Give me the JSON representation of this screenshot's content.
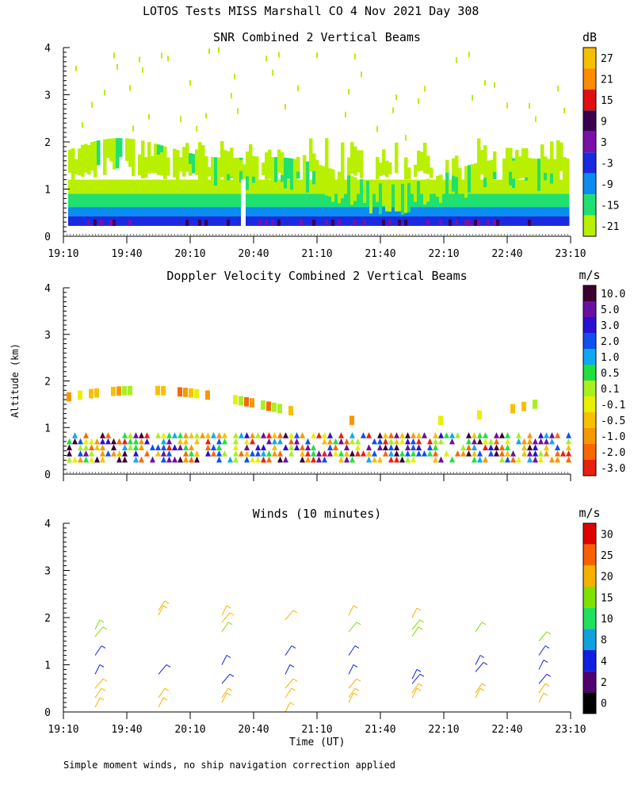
{
  "figure": {
    "title": "LOTOS Tests MISS Marshall CO   4 Nov 2021 Day 308",
    "y_axis_label": "Altitude (km)",
    "x_axis_label": "Time (UT)",
    "footnote": "Simple moment winds, no ship navigation correction applied"
  },
  "chart_data": [
    {
      "type": "heatmap",
      "title": "SNR Combined 2 Vertical Beams",
      "ylim": [
        0,
        4
      ],
      "y_ticks": [
        "0",
        "1",
        "2",
        "3",
        "4"
      ],
      "x_ticks": [
        "19:10",
        "19:40",
        "20:10",
        "20:40",
        "21:10",
        "21:40",
        "22:10",
        "22:40",
        "23:10"
      ],
      "colorbar": {
        "unit": "dB",
        "labels": [
          "27",
          "21",
          "15",
          "9",
          "3",
          "-3",
          "-9",
          "-15",
          "-21"
        ],
        "colors": [
          "#f6c000",
          "#ff8c00",
          "#e01010",
          "#3a0050",
          "#7a10a8",
          "#1a2ae0",
          "#0a8cf0",
          "#20e070",
          "#b8f000"
        ]
      },
      "layers": [
        {
          "level": "-21 to -15 dB",
          "altitude_km": [
            0.3,
            2.0
          ],
          "note": "scattered echoes to ~4 km"
        },
        {
          "level": "-9 to 3 dB",
          "altitude_km": [
            0.2,
            0.9
          ]
        },
        {
          "level": "3 to 9 dB",
          "altitude_km": [
            0.2,
            0.45
          ]
        }
      ]
    },
    {
      "type": "heatmap",
      "title": "Doppler Velocity Combined 2 Vertical Beams",
      "ylim": [
        0,
        4
      ],
      "y_ticks": [
        "0",
        "1",
        "2",
        "3",
        "4"
      ],
      "x_ticks": [],
      "colorbar": {
        "unit": "m/s",
        "labels": [
          "10.0",
          "5.0",
          "3.0",
          "2.0",
          "1.0",
          "0.5",
          "0.1",
          "-0.1",
          "-0.5",
          "-1.0",
          "-2.0",
          "-3.0"
        ],
        "colors": [
          "#3a0030",
          "#6a10a0",
          "#2a10d0",
          "#1050f0",
          "#10a8f0",
          "#20e040",
          "#a8f020",
          "#e8f000",
          "#f8c000",
          "#f89800",
          "#f86800",
          "#e82010"
        ]
      }
    },
    {
      "type": "scatter",
      "title": "Winds (10 minutes)",
      "ylim": [
        0,
        4
      ],
      "y_ticks": [
        "0",
        "1",
        "2",
        "3",
        "4"
      ],
      "x_ticks": [
        "19:10",
        "19:40",
        "20:10",
        "20:40",
        "21:10",
        "21:40",
        "22:10",
        "22:40",
        "23:10"
      ],
      "colorbar": {
        "unit": "m/s",
        "labels": [
          "30",
          "25",
          "20",
          "15",
          "10",
          "8",
          "4",
          "2",
          "0"
        ],
        "colors": [
          "#e00000",
          "#f86000",
          "#f8b000",
          "#80e000",
          "#20e060",
          "#10a0e0",
          "#1020e0",
          "#500070",
          "#000000"
        ]
      },
      "wind_profiles": [
        {
          "time": "19:25",
          "altitude_km": [
            0.1,
            0.3,
            0.5,
            0.8,
            1.2,
            1.6,
            1.75
          ]
        },
        {
          "time": "19:55",
          "altitude_km": [
            0.1,
            0.3,
            0.8,
            2.05,
            2.15
          ]
        },
        {
          "time": "20:25",
          "altitude_km": [
            0.2,
            0.3,
            0.6,
            1.0,
            1.7,
            1.9,
            2.05
          ]
        },
        {
          "time": "20:55",
          "altitude_km": [
            0.0,
            0.3,
            0.5,
            0.8,
            1.2,
            1.95
          ]
        },
        {
          "time": "21:25",
          "altitude_km": [
            0.2,
            0.3,
            0.5,
            0.8,
            1.2,
            1.7,
            2.05
          ]
        },
        {
          "time": "21:55",
          "altitude_km": [
            0.3,
            0.4,
            0.6,
            0.7,
            1.6,
            1.75,
            2.0
          ]
        },
        {
          "time": "22:25",
          "altitude_km": [
            0.3,
            0.4,
            0.85,
            1.0,
            1.7
          ]
        },
        {
          "time": "22:55",
          "altitude_km": [
            0.2,
            0.4,
            0.6,
            0.9,
            1.2,
            1.5
          ]
        }
      ]
    }
  ]
}
